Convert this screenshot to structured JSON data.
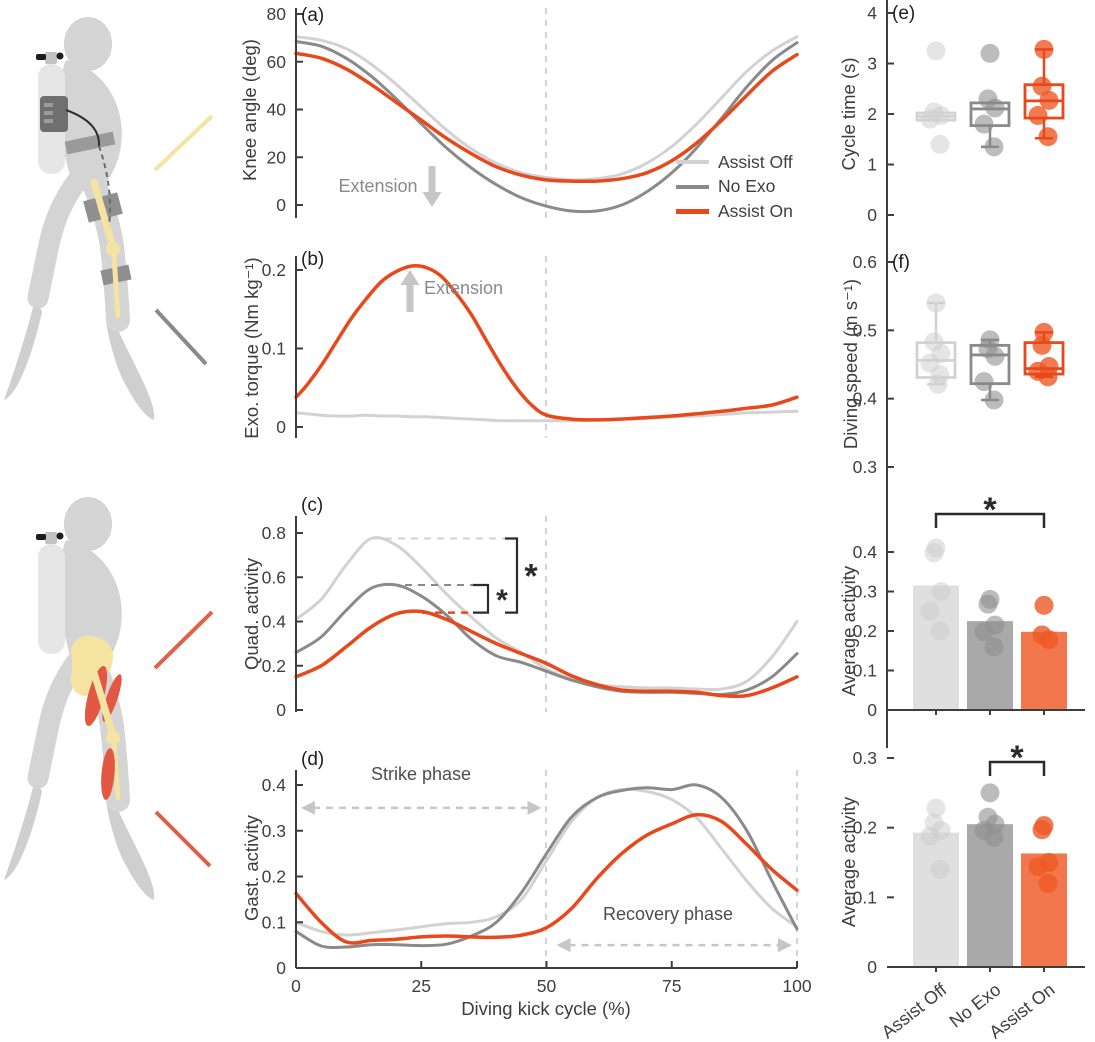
{
  "colors": {
    "assist_off": "#d2d2d2",
    "no_exo": "#8a8a8a",
    "assist_on": "#e8481b",
    "assist_off_fill": "#dfdfdf",
    "no_exo_fill": "#a9a9a9",
    "assist_on_fill": "#f3774d",
    "assist_off_point": "#cccccc",
    "no_exo_point": "#8f8f8f",
    "assist_on_point": "#ee5a26",
    "axis": "#3d3d3d",
    "tick_text": "#3f3f3f",
    "guide_dash": "#c8c8c8",
    "annotation_arrow": "#c6c6c6",
    "sig": "#2b2b2b",
    "bone_yellow": "#f5e3a2",
    "muscle_red": "#e25843",
    "leader_red": "#e0604a",
    "body_gray": "#d4d4d4"
  },
  "categories": [
    "Assist Off",
    "No Exo",
    "Assist On"
  ],
  "legend": {
    "items": [
      {
        "label": "Assist Off",
        "color_key": "assist_off"
      },
      {
        "label": "No Exo",
        "color_key": "no_exo"
      },
      {
        "label": "Assist On",
        "color_key": "assist_on"
      }
    ]
  },
  "shared": {
    "xlabel": "Diving kick cycle (%)"
  },
  "chart_data": [
    {
      "id": "a",
      "panel_label": "(a)",
      "type": "line",
      "ylabel": "Knee angle (deg)",
      "yticks": [
        "0",
        "20",
        "40",
        "60",
        "80"
      ],
      "ylim": [
        -10,
        80
      ],
      "x": [
        0,
        5,
        10,
        15,
        20,
        25,
        30,
        35,
        40,
        45,
        50,
        55,
        60,
        65,
        70,
        75,
        80,
        85,
        90,
        95,
        100
      ],
      "series": [
        {
          "name": "Assist Off",
          "color_key": "assist_off",
          "values": [
            70.5,
            69,
            65.5,
            59,
            50.5,
            41,
            31.5,
            23.5,
            17.5,
            13.5,
            11.5,
            10.5,
            11,
            13,
            17.5,
            24.5,
            34,
            45,
            56,
            64.5,
            70.5
          ]
        },
        {
          "name": "No Exo",
          "color_key": "no_exo",
          "values": [
            68.5,
            66.5,
            61.5,
            54,
            44.5,
            34,
            24,
            15.5,
            8.5,
            3,
            -0.5,
            -2.5,
            -2.5,
            0,
            5.5,
            13.5,
            24,
            36.5,
            49.5,
            60.5,
            68
          ]
        },
        {
          "name": "Assist On",
          "color_key": "assist_on",
          "values": [
            63.5,
            61.5,
            57,
            50.5,
            43,
            35.5,
            28,
            21.5,
            16,
            12.5,
            10.5,
            10,
            10,
            11,
            13.5,
            18.5,
            26,
            35.5,
            46,
            56,
            63
          ]
        }
      ],
      "direction_note": {
        "label": "Extension",
        "direction": "down"
      }
    },
    {
      "id": "b",
      "panel_label": "(b)",
      "type": "line",
      "ylabel": "Exo. torque (Nm kg⁻¹)",
      "yticks": [
        "0",
        "0.1",
        "0.2"
      ],
      "ylim": [
        -0.02,
        0.22
      ],
      "x": [
        0,
        2,
        5,
        8,
        11,
        14,
        17,
        20,
        23,
        26,
        29,
        32,
        35,
        38,
        41,
        44,
        47,
        50,
        55,
        60,
        65,
        70,
        75,
        80,
        85,
        90,
        95,
        100
      ],
      "series": [
        {
          "name": "Assist Off",
          "color_key": "assist_off",
          "values": [
            0.018,
            0.017,
            0.015,
            0.014,
            0.014,
            0.015,
            0.014,
            0.014,
            0.013,
            0.013,
            0.012,
            0.011,
            0.01,
            0.009,
            0.008,
            0.008,
            0.008,
            0.008,
            0.008,
            0.009,
            0.01,
            0.011,
            0.013,
            0.014,
            0.016,
            0.018,
            0.019,
            0.02
          ]
        },
        {
          "name": "Assist On",
          "color_key": "assist_on",
          "values": [
            0.038,
            0.052,
            0.078,
            0.108,
            0.138,
            0.163,
            0.185,
            0.198,
            0.205,
            0.203,
            0.192,
            0.17,
            0.143,
            0.11,
            0.078,
            0.05,
            0.028,
            0.015,
            0.01,
            0.009,
            0.01,
            0.012,
            0.014,
            0.017,
            0.02,
            0.024,
            0.028,
            0.038
          ]
        }
      ],
      "direction_note": {
        "label": "Extension",
        "direction": "up"
      }
    },
    {
      "id": "c",
      "panel_label": "(c)",
      "type": "line",
      "ylabel": "Quad. activity",
      "yticks": [
        "0",
        "0.2",
        "0.4",
        "0.6",
        "0.8"
      ],
      "ylim": [
        0,
        0.9
      ],
      "x": [
        0,
        5,
        10,
        15,
        20,
        25,
        30,
        35,
        40,
        45,
        50,
        55,
        60,
        65,
        70,
        75,
        80,
        85,
        90,
        95,
        100
      ],
      "series": [
        {
          "name": "Assist Off",
          "color_key": "assist_off",
          "values": [
            0.41,
            0.5,
            0.655,
            0.775,
            0.745,
            0.645,
            0.525,
            0.42,
            0.325,
            0.26,
            0.185,
            0.14,
            0.115,
            0.105,
            0.1,
            0.1,
            0.095,
            0.095,
            0.13,
            0.24,
            0.4
          ]
        },
        {
          "name": "No Exo",
          "color_key": "no_exo",
          "values": [
            0.26,
            0.33,
            0.45,
            0.55,
            0.565,
            0.515,
            0.43,
            0.32,
            0.245,
            0.215,
            0.175,
            0.135,
            0.105,
            0.085,
            0.08,
            0.08,
            0.075,
            0.07,
            0.09,
            0.15,
            0.255
          ]
        },
        {
          "name": "Assist On",
          "color_key": "assist_on",
          "values": [
            0.15,
            0.2,
            0.285,
            0.375,
            0.435,
            0.445,
            0.41,
            0.355,
            0.3,
            0.255,
            0.21,
            0.155,
            0.115,
            0.09,
            0.085,
            0.085,
            0.08,
            0.065,
            0.065,
            0.1,
            0.15
          ]
        }
      ],
      "peak_guides": [
        {
          "value": 0.775,
          "color_key": "assist_off"
        },
        {
          "value": 0.565,
          "color_key": "no_exo"
        },
        {
          "value": 0.44,
          "color_key": "assist_on"
        }
      ],
      "sig_brackets": [
        {
          "top_value": 0.565,
          "bottom_value": 0.44,
          "label": "*"
        },
        {
          "top_value": 0.775,
          "bottom_value": 0.44,
          "label": "*"
        }
      ]
    },
    {
      "id": "d",
      "panel_label": "(d)",
      "type": "line",
      "ylabel": "Gast. activity",
      "yticks": [
        "0",
        "0.1",
        "0.2",
        "0.3",
        "0.4"
      ],
      "ylim": [
        0,
        0.45
      ],
      "xticks": [
        0,
        25,
        50,
        75,
        100
      ],
      "x": [
        0,
        5,
        10,
        15,
        20,
        25,
        30,
        35,
        40,
        45,
        50,
        55,
        60,
        65,
        70,
        75,
        80,
        85,
        90,
        95,
        100
      ],
      "series": [
        {
          "name": "Assist Off",
          "color_key": "assist_off",
          "values": [
            0.1,
            0.08,
            0.072,
            0.077,
            0.083,
            0.09,
            0.097,
            0.1,
            0.112,
            0.15,
            0.235,
            0.32,
            0.372,
            0.39,
            0.386,
            0.368,
            0.328,
            0.26,
            0.19,
            0.13,
            0.09
          ]
        },
        {
          "name": "No Exo",
          "color_key": "no_exo",
          "values": [
            0.08,
            0.048,
            0.046,
            0.051,
            0.051,
            0.049,
            0.052,
            0.07,
            0.1,
            0.165,
            0.25,
            0.33,
            0.372,
            0.388,
            0.394,
            0.39,
            0.4,
            0.372,
            0.3,
            0.19,
            0.085
          ]
        },
        {
          "name": "Assist On",
          "color_key": "assist_on",
          "values": [
            0.163,
            0.1,
            0.057,
            0.06,
            0.063,
            0.068,
            0.07,
            0.068,
            0.067,
            0.072,
            0.088,
            0.13,
            0.195,
            0.25,
            0.29,
            0.315,
            0.335,
            0.32,
            0.27,
            0.215,
            0.17
          ]
        }
      ],
      "phases": [
        {
          "label": "Strike phase",
          "x1": 1,
          "x2": 49,
          "y": 0.35
        },
        {
          "label": "Recovery phase",
          "x1": 52,
          "x2": 99,
          "y": 0.05
        }
      ]
    },
    {
      "id": "e",
      "panel_label": "(e)",
      "type": "box",
      "ylabel": "Cycle time (s)",
      "yticks": [
        "0",
        "1",
        "2",
        "3",
        "4"
      ],
      "ylim": [
        0,
        4
      ],
      "groups": [
        {
          "name": "Assist Off",
          "color_key": "assist_off",
          "q1": 1.88,
          "median": 1.95,
          "q3": 2.02,
          "whisker_low": 1.88,
          "whisker_high": 2.02,
          "points": [
            3.25,
            2.04,
            1.97,
            1.9,
            1.4
          ]
        },
        {
          "name": "No Exo",
          "color_key": "no_exo",
          "q1": 1.77,
          "median": 2.1,
          "q3": 2.22,
          "whisker_low": 1.35,
          "whisker_high": 2.22,
          "points": [
            3.2,
            2.3,
            2.12,
            1.8,
            1.35
          ]
        },
        {
          "name": "Assist On",
          "color_key": "assist_on",
          "q1": 1.92,
          "median": 2.26,
          "q3": 2.58,
          "whisker_low": 1.52,
          "whisker_high": 3.28,
          "points": [
            3.28,
            2.55,
            2.27,
            1.97,
            1.55
          ]
        }
      ]
    },
    {
      "id": "f",
      "panel_label": "(f)",
      "type": "box",
      "ylabel": "Diving speed (m s⁻¹)",
      "yticks": [
        "0.3",
        "0.4",
        "0.5",
        "0.6"
      ],
      "ylim": [
        0.3,
        0.6
      ],
      "groups": [
        {
          "name": "Assist Off",
          "color_key": "assist_off",
          "q1": 0.431,
          "median": 0.456,
          "q3": 0.482,
          "whisker_low": 0.421,
          "whisker_high": 0.54,
          "points": [
            0.54,
            0.483,
            0.466,
            0.452,
            0.435,
            0.421
          ]
        },
        {
          "name": "No Exo",
          "color_key": "no_exo",
          "q1": 0.422,
          "median": 0.464,
          "q3": 0.478,
          "whisker_low": 0.398,
          "whisker_high": 0.486,
          "points": [
            0.486,
            0.473,
            0.462,
            0.425,
            0.398
          ]
        },
        {
          "name": "Assist On",
          "color_key": "assist_on",
          "q1": 0.436,
          "median": 0.444,
          "q3": 0.482,
          "whisker_low": 0.432,
          "whisker_high": 0.497,
          "points": [
            0.497,
            0.478,
            0.447,
            0.44,
            0.432
          ]
        }
      ]
    },
    {
      "id": "g",
      "type": "bar",
      "ylabel": "Average activity",
      "yticks": [
        "0",
        "0.1",
        "0.2",
        "0.3",
        "0.4"
      ],
      "ylim": [
        0,
        0.5
      ],
      "values": [
        0.315,
        0.225,
        0.198
      ],
      "points": [
        [
          0.41,
          0.398,
          0.3,
          0.25,
          0.2
        ],
        [
          0.28,
          0.268,
          0.215,
          0.198,
          0.16
        ],
        [
          0.265,
          0.19,
          0.178
        ]
      ],
      "sig": {
        "from": 0,
        "to": 2,
        "label": "*"
      }
    },
    {
      "id": "h",
      "type": "bar",
      "ylabel": "Average activity",
      "yticks": [
        "0",
        "0.1",
        "0.2",
        "0.3"
      ],
      "ylim": [
        0,
        0.3
      ],
      "values": [
        0.193,
        0.205,
        0.163
      ],
      "points": [
        [
          0.228,
          0.207,
          0.196,
          0.188,
          0.14
        ],
        [
          0.25,
          0.215,
          0.205,
          0.196,
          0.186
        ],
        [
          0.203,
          0.197,
          0.15,
          0.144,
          0.12
        ]
      ],
      "sig": {
        "from": 1,
        "to": 2,
        "label": "*"
      }
    }
  ]
}
